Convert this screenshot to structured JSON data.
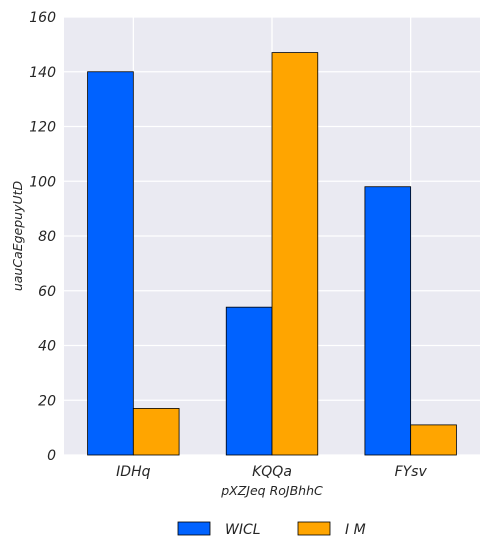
{
  "chart_data": {
    "type": "bar",
    "categories": [
      "IDHq",
      "KQQa",
      "FYsv"
    ],
    "series": [
      {
        "name": "WICL",
        "color": "#0062ff",
        "values": [
          140,
          54,
          98
        ]
      },
      {
        "name": "I M",
        "color": "#ffa500",
        "values": [
          17,
          147,
          11
        ]
      }
    ],
    "xlabel": "pXZJeq RoJBhhC",
    "ylabel": "uauCaEgepuyUtD",
    "ylim": [
      0,
      160
    ],
    "yticks": [
      0,
      20,
      40,
      60,
      80,
      100,
      120,
      140,
      160
    ],
    "grid": true,
    "plot_background": "#eaeaf2",
    "legend_position": "bottom-center"
  }
}
